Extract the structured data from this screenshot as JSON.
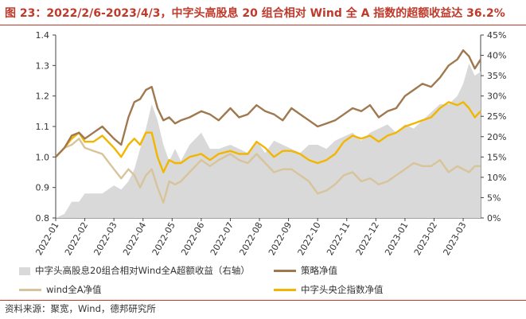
{
  "title": "图 23：2022/2/6-2023/4/3，中字头高股息 20 组合相对 Wind 全 A 指数的超额收益达 36.2%",
  "source": "资料来源：聚宽，Wind，德邦研究所",
  "colors": {
    "title": "#c0392b",
    "excess_area": "#d9d9d9",
    "strategy": "#a0784f",
    "wind": "#d8c49a",
    "cso": "#f2b600"
  },
  "chart_data": {
    "type": "line",
    "x_tick_labels": [
      "2022-01",
      "2022-02",
      "2022-03",
      "2022-04",
      "2022-05",
      "2022-06",
      "2022-07",
      "2022-08",
      "2022-09",
      "2022-10",
      "2022-11",
      "2022-12",
      "2023-01",
      "2023-02",
      "2023-03"
    ],
    "y_left": {
      "ylim": [
        0.8,
        1.4
      ],
      "ticks": [
        "0.8",
        "0.9",
        "1.0",
        "1.1",
        "1.2",
        "1.3",
        "1.4"
      ]
    },
    "y_right": {
      "ylim": [
        0,
        45
      ],
      "ticks": [
        "0%",
        "5%",
        "10%",
        "15%",
        "20%",
        "25%",
        "30%",
        "35%",
        "40%",
        "45%"
      ]
    },
    "x_range": [
      0,
      14.6
    ],
    "x": [
      0,
      0.3,
      0.55,
      0.8,
      1.0,
      1.3,
      1.6,
      2.0,
      2.25,
      2.5,
      2.7,
      2.9,
      3.1,
      3.3,
      3.5,
      3.7,
      3.9,
      4.1,
      4.3,
      4.6,
      5.0,
      5.3,
      5.6,
      6.0,
      6.3,
      6.6,
      6.9,
      7.2,
      7.5,
      7.8,
      8.1,
      8.4,
      8.7,
      9.0,
      9.3,
      9.6,
      9.9,
      10.2,
      10.5,
      10.8,
      11.1,
      11.4,
      11.7,
      12.0,
      12.3,
      12.6,
      12.9,
      13.2,
      13.5,
      13.8,
      14.0,
      14.2,
      14.4,
      14.6
    ],
    "series": [
      {
        "name": "中字头高股息20组合相对Wind全A超额收益（右轴）",
        "axis": "right",
        "style": "area",
        "values": [
          0,
          1,
          4,
          4,
          6,
          6,
          6,
          8,
          7,
          9,
          12,
          17,
          22,
          28,
          24,
          18,
          14,
          17,
          14,
          18,
          21,
          17,
          17,
          18,
          17,
          16,
          19,
          16,
          19,
          18,
          17,
          16,
          18,
          18,
          17,
          19,
          20,
          21,
          19,
          21,
          22,
          23,
          21,
          23,
          22,
          24,
          26,
          28,
          28,
          30,
          33,
          38,
          35,
          36
        ]
      },
      {
        "name": "策略净值",
        "axis": "left",
        "style": "line",
        "values": [
          1.0,
          1.03,
          1.07,
          1.08,
          1.06,
          1.08,
          1.1,
          1.06,
          1.04,
          1.13,
          1.18,
          1.19,
          1.22,
          1.23,
          1.16,
          1.12,
          1.13,
          1.11,
          1.12,
          1.13,
          1.15,
          1.14,
          1.12,
          1.16,
          1.13,
          1.14,
          1.17,
          1.15,
          1.14,
          1.12,
          1.16,
          1.14,
          1.12,
          1.1,
          1.11,
          1.12,
          1.14,
          1.16,
          1.15,
          1.17,
          1.13,
          1.15,
          1.16,
          1.2,
          1.22,
          1.24,
          1.23,
          1.26,
          1.3,
          1.32,
          1.35,
          1.33,
          1.29,
          1.32
        ]
      },
      {
        "name": "wind全A净值",
        "axis": "left",
        "style": "line",
        "values": [
          1.0,
          1.03,
          1.04,
          1.06,
          1.03,
          1.02,
          1.01,
          0.96,
          0.93,
          0.96,
          0.94,
          0.9,
          0.94,
          0.96,
          0.9,
          0.85,
          0.92,
          0.91,
          0.92,
          0.95,
          0.99,
          0.97,
          0.99,
          1.01,
          0.99,
          0.98,
          1.01,
          0.98,
          0.95,
          0.96,
          0.96,
          0.94,
          0.92,
          0.88,
          0.89,
          0.91,
          0.94,
          0.95,
          0.92,
          0.93,
          0.91,
          0.92,
          0.94,
          0.96,
          0.98,
          0.97,
          0.97,
          0.99,
          0.95,
          0.97,
          0.96,
          0.95,
          0.97,
          0.97
        ]
      },
      {
        "name": "中字头央企指数净值",
        "axis": "left",
        "style": "line",
        "values": [
          1.0,
          1.03,
          1.06,
          1.08,
          1.05,
          1.05,
          1.07,
          1.03,
          1.0,
          1.04,
          1.06,
          1.04,
          1.08,
          1.08,
          1.0,
          0.95,
          0.99,
          0.98,
          0.98,
          1.0,
          1.01,
          0.99,
          1.01,
          1.02,
          1.01,
          1.01,
          1.05,
          1.03,
          1.0,
          1.02,
          1.02,
          1.01,
          0.99,
          0.98,
          0.99,
          1.01,
          1.05,
          1.07,
          1.06,
          1.07,
          1.05,
          1.07,
          1.08,
          1.1,
          1.11,
          1.12,
          1.13,
          1.16,
          1.18,
          1.17,
          1.18,
          1.16,
          1.13,
          1.15
        ]
      }
    ]
  },
  "legend": [
    {
      "label": "中字头高股息20组合相对Wind全A超额收益（右轴）"
    },
    {
      "label": "策略净值"
    },
    {
      "label": "wind全A净值"
    },
    {
      "label": "中字头央企指数净值"
    }
  ]
}
